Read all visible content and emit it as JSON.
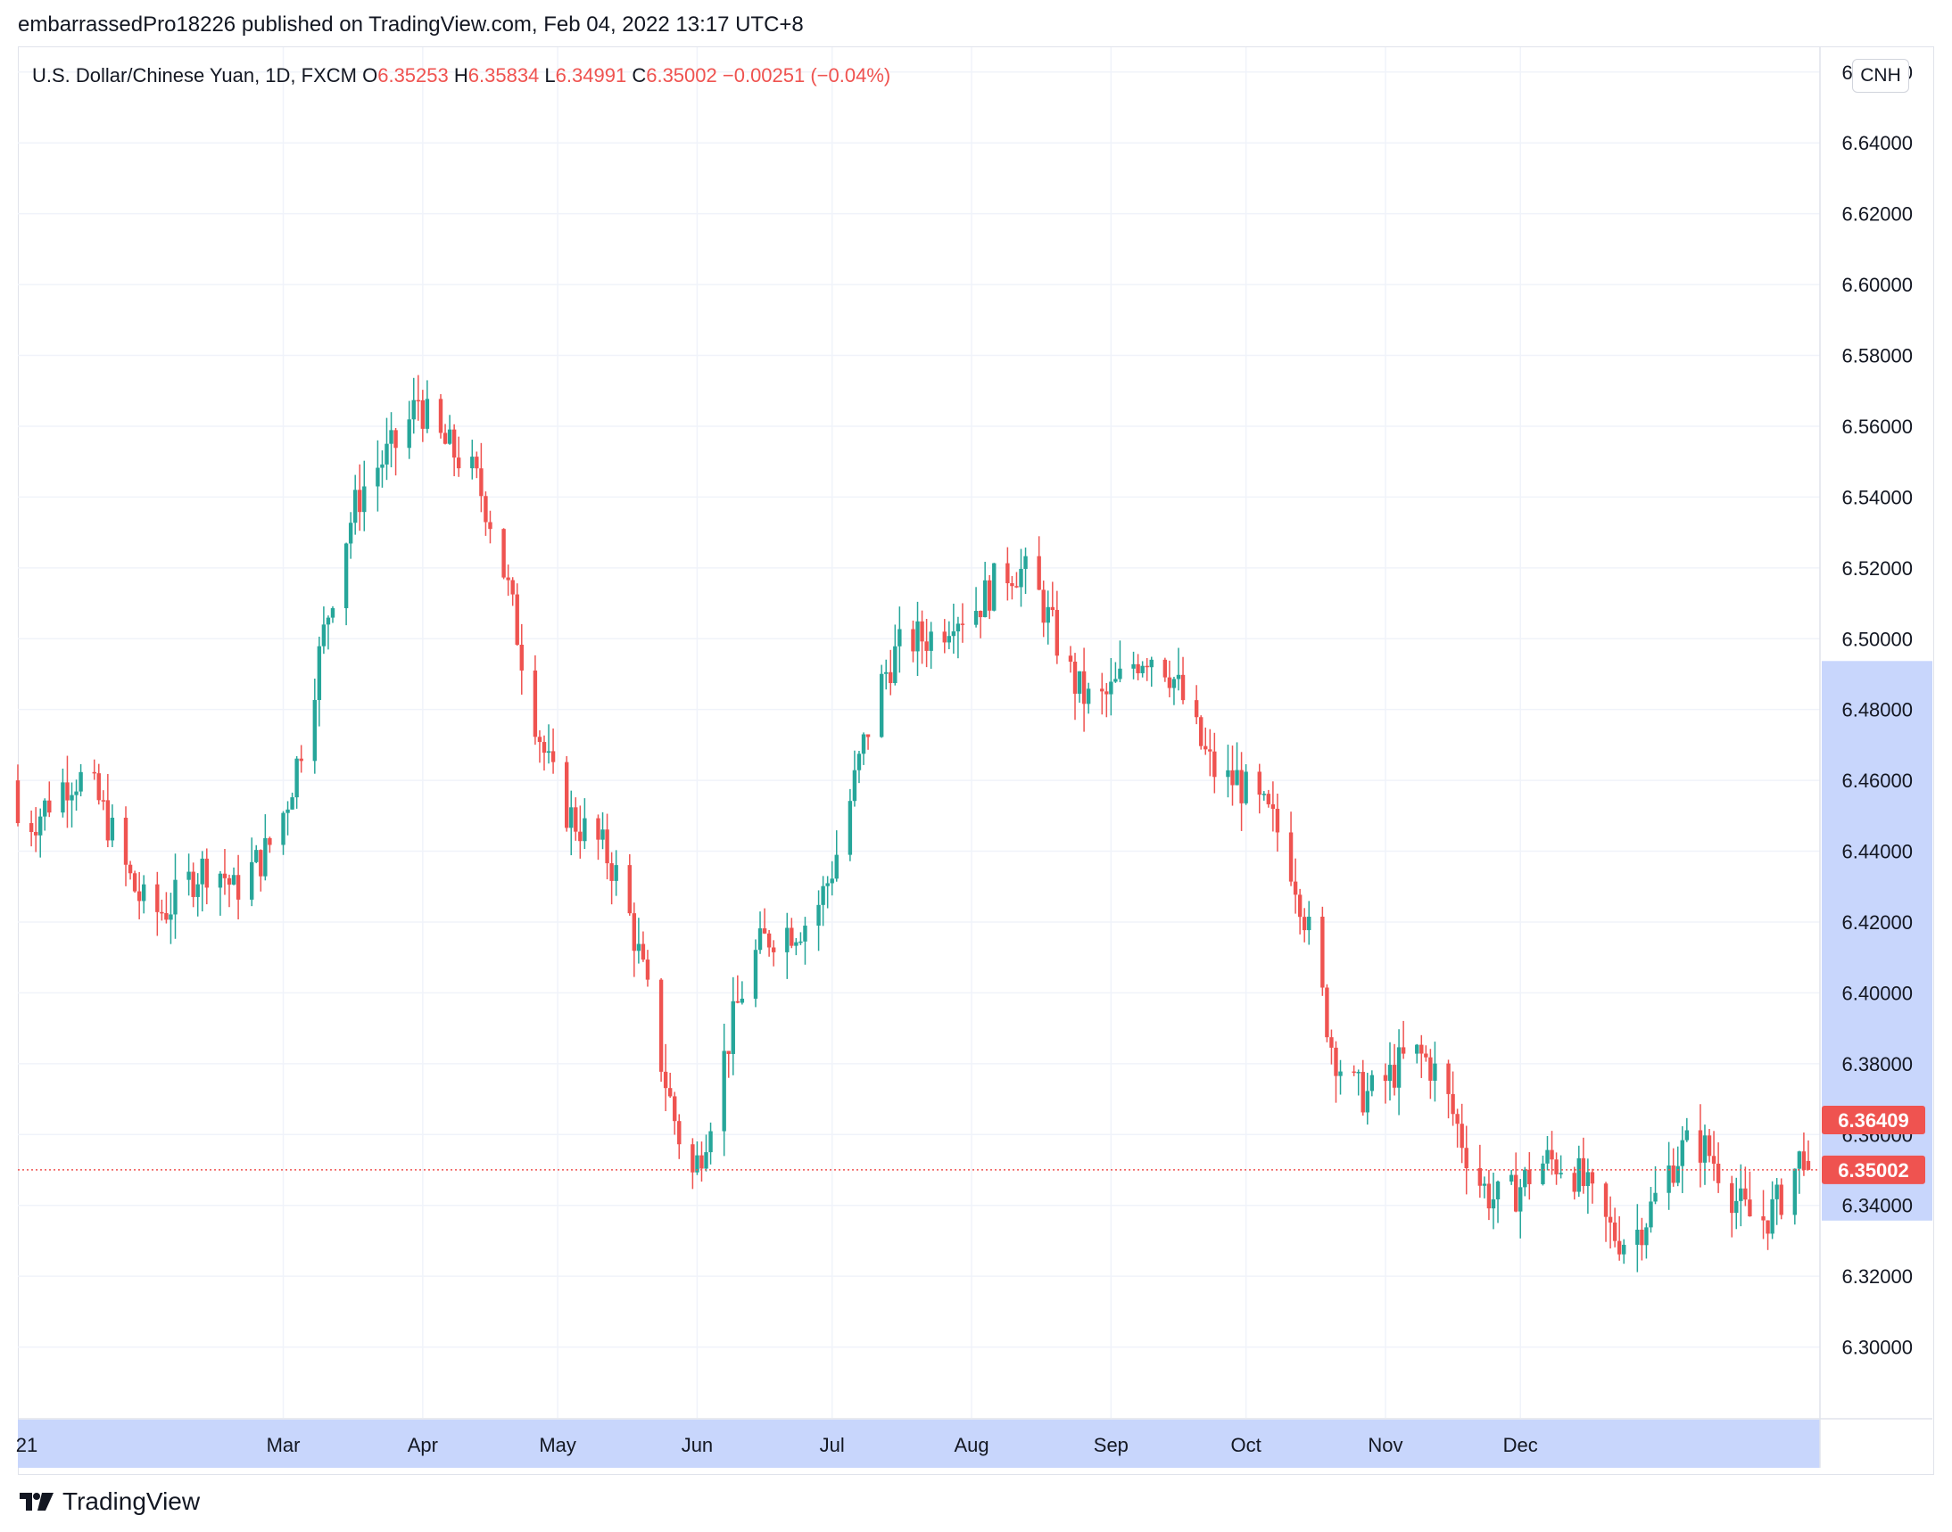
{
  "header": {
    "publisher_text": "embarrassedPro18226 published on TradingView.com, Feb 04, 2022 13:17 UTC+8"
  },
  "legend": {
    "symbol_text": "U.S. Dollar/Chinese Yuan, 1D, FXCM",
    "open_label": "O",
    "open_value": "6.35253",
    "high_label": "H",
    "high_value": "6.35834",
    "low_label": "L",
    "low_value": "6.34991",
    "close_label": "C",
    "close_value": "6.35002",
    "change_text": "−0.00251 (−0.04%)"
  },
  "currency_label": "CNH",
  "brand": {
    "name": "TradingView",
    "logo_icon": "tradingview-logo-icon"
  },
  "colors": {
    "up": "#26a69a",
    "down": "#ef5350",
    "grid": "#f0f3fa",
    "axis_highlight": "#c8d6fc",
    "price_tag": "#ef5350"
  },
  "chart_data": {
    "type": "candlestick",
    "y_axis_ticks": [
      "6.30000",
      "6.32000",
      "6.34000",
      "6.36000",
      "6.38000",
      "6.40000",
      "6.42000",
      "6.44000",
      "6.46000",
      "6.48000",
      "6.50000",
      "6.52000",
      "6.54000",
      "6.56000",
      "6.58000",
      "6.60000",
      "6.62000",
      "6.64000",
      "6.66000"
    ],
    "x_axis_ticks": [
      "2021",
      "Mar",
      "Apr",
      "May",
      "Jun",
      "Jul",
      "Aug",
      "Sep",
      "Oct",
      "Nov",
      "Dec"
    ],
    "x_axis_first_tick_display": "21",
    "ylim": [
      6.28,
      6.667
    ],
    "grid": true,
    "highlight_range": [
      6.3357,
      6.4937
    ],
    "price_labels": [
      {
        "text": "6.36409",
        "value": 6.36409
      },
      {
        "text": "6.35002",
        "value": 6.35002,
        "dotted_line": true
      }
    ],
    "legend_position": "top-left",
    "key_points": [
      {
        "date": "2021-01",
        "price": 6.46
      },
      {
        "date": "2021-02-18",
        "price": 6.42
      },
      {
        "date": "2021-03-31",
        "price": 6.58
      },
      {
        "date": "2021-05-31",
        "price": 6.36
      },
      {
        "date": "2021-07-28",
        "price": 6.52
      },
      {
        "date": "2021-08-20",
        "price": 6.5
      },
      {
        "date": "2021-09-29",
        "price": 6.47
      },
      {
        "date": "2021-10-20",
        "price": 6.39
      },
      {
        "date": "2021-12-09",
        "price": 6.34
      },
      {
        "date": "2022-02-04",
        "price": 6.35
      }
    ],
    "last_candle": {
      "open": 6.35253,
      "high": 6.35834,
      "low": 6.34991,
      "close": 6.35002
    }
  }
}
